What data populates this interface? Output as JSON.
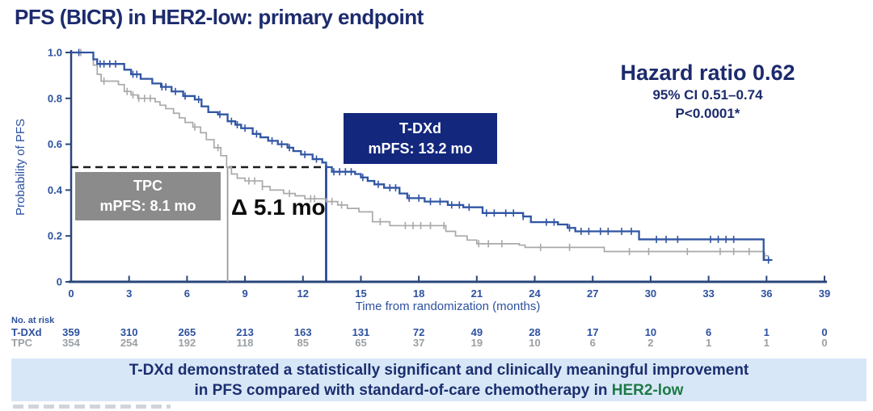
{
  "title": "PFS (BICR) in HER2-low: primary endpoint",
  "stats": {
    "hazard_ratio": "Hazard ratio 0.62",
    "ci": "95% CI 0.51–0.74",
    "p_value": "P<0.0001*"
  },
  "legend": {
    "tdxd": {
      "name": "T-DXd",
      "mpfs": "mPFS: 13.2 mo"
    },
    "tpc": {
      "name": "TPC",
      "mpfs": "mPFS: 8.1 mo"
    }
  },
  "delta_label": "Δ 5.1 mo",
  "banner": {
    "line1": "T-DXd demonstrated a statistically significant and clinically meaningful improvement",
    "line2_prefix": "in PFS compared with standard-of-care chemotherapy in ",
    "line2_highlight": "HER2-low"
  },
  "risk_table": {
    "caption": "No. at risk",
    "rows": [
      {
        "label": "T-DXd",
        "counts": [
          359,
          310,
          265,
          213,
          163,
          131,
          72,
          49,
          28,
          17,
          10,
          6,
          1,
          0
        ]
      },
      {
        "label": "TPC",
        "counts": [
          354,
          254,
          192,
          118,
          85,
          65,
          37,
          19,
          10,
          6,
          2,
          1,
          1,
          0
        ]
      }
    ]
  },
  "chart_data": {
    "type": "line",
    "subtype": "kaplan-meier-step",
    "title": "",
    "xlabel": "Time from randomization (months)",
    "ylabel": "Probability of PFS",
    "xlim": [
      0,
      39
    ],
    "ylim": [
      0,
      1.0
    ],
    "xticks": [
      0,
      3,
      6,
      9,
      12,
      15,
      18,
      21,
      24,
      27,
      30,
      33,
      36,
      39
    ],
    "yticks": [
      0,
      0.2,
      0.4,
      0.6,
      0.8,
      1.0
    ],
    "ytick_labels": [
      "0",
      "0.2",
      "0.4",
      "0.6",
      "0.8",
      "1.0"
    ],
    "grid": false,
    "median_reference_probability": 0.5,
    "series": [
      {
        "name": "TPC",
        "color": "#a9a9a9",
        "median_months": 8.1,
        "steps": [
          [
            0,
            1.0
          ],
          [
            1.15,
            0.945
          ],
          [
            1.35,
            0.905
          ],
          [
            1.55,
            0.875
          ],
          [
            2.45,
            0.86
          ],
          [
            2.75,
            0.83
          ],
          [
            3.1,
            0.815
          ],
          [
            3.45,
            0.8
          ],
          [
            4.35,
            0.785
          ],
          [
            4.6,
            0.77
          ],
          [
            4.9,
            0.755
          ],
          [
            5.3,
            0.735
          ],
          [
            5.6,
            0.715
          ],
          [
            5.9,
            0.695
          ],
          [
            6.3,
            0.675
          ],
          [
            6.7,
            0.65
          ],
          [
            7.0,
            0.62
          ],
          [
            7.4,
            0.585
          ],
          [
            7.75,
            0.55
          ],
          [
            8.05,
            0.5
          ],
          [
            8.3,
            0.47
          ],
          [
            8.6,
            0.452
          ],
          [
            9.0,
            0.44
          ],
          [
            9.9,
            0.415
          ],
          [
            10.3,
            0.4
          ],
          [
            11.0,
            0.385
          ],
          [
            11.6,
            0.375
          ],
          [
            12.1,
            0.362
          ],
          [
            13.2,
            0.35
          ],
          [
            13.8,
            0.335
          ],
          [
            14.3,
            0.32
          ],
          [
            14.9,
            0.305
          ],
          [
            15.6,
            0.262
          ],
          [
            16.5,
            0.245
          ],
          [
            19.4,
            0.22
          ],
          [
            19.9,
            0.2
          ],
          [
            20.5,
            0.182
          ],
          [
            21.0,
            0.166
          ],
          [
            23.2,
            0.16
          ],
          [
            23.5,
            0.15
          ],
          [
            27.6,
            0.132
          ],
          [
            35.85,
            0.114
          ],
          [
            36.1,
            0.114
          ]
        ],
        "censor_months": [
          0.5,
          1.7,
          2.9,
          3.2,
          3.5,
          3.8,
          4.1,
          6.4,
          7.6,
          9.2,
          9.5,
          9.9,
          11.3,
          12.4,
          12.6,
          13.5,
          14.0,
          16.0,
          17.3,
          17.7,
          18.1,
          18.6,
          19.3,
          21.1,
          21.6,
          22.3,
          24.3,
          25.8,
          28.9,
          29.9,
          31.9,
          33.6,
          34.3,
          35.1,
          35.9
        ]
      },
      {
        "name": "T-DXd",
        "color": "#3055a3",
        "median_months": 13.2,
        "steps": [
          [
            0,
            1.0
          ],
          [
            1.15,
            0.97
          ],
          [
            1.35,
            0.95
          ],
          [
            2.75,
            0.925
          ],
          [
            3.1,
            0.905
          ],
          [
            3.6,
            0.885
          ],
          [
            4.2,
            0.865
          ],
          [
            4.65,
            0.85
          ],
          [
            5.2,
            0.83
          ],
          [
            5.8,
            0.81
          ],
          [
            6.4,
            0.795
          ],
          [
            6.75,
            0.765
          ],
          [
            7.1,
            0.74
          ],
          [
            7.6,
            0.73
          ],
          [
            8.1,
            0.7
          ],
          [
            8.5,
            0.685
          ],
          [
            8.8,
            0.67
          ],
          [
            9.4,
            0.645
          ],
          [
            9.8,
            0.63
          ],
          [
            10.2,
            0.615
          ],
          [
            10.7,
            0.6
          ],
          [
            11.2,
            0.585
          ],
          [
            11.5,
            0.57
          ],
          [
            11.9,
            0.555
          ],
          [
            12.5,
            0.535
          ],
          [
            13.0,
            0.52
          ],
          [
            13.2,
            0.5
          ],
          [
            13.5,
            0.48
          ],
          [
            14.7,
            0.47
          ],
          [
            15.0,
            0.455
          ],
          [
            15.35,
            0.44
          ],
          [
            15.7,
            0.425
          ],
          [
            16.2,
            0.41
          ],
          [
            17.0,
            0.385
          ],
          [
            17.4,
            0.365
          ],
          [
            18.3,
            0.35
          ],
          [
            19.5,
            0.335
          ],
          [
            20.3,
            0.325
          ],
          [
            21.3,
            0.3
          ],
          [
            23.4,
            0.285
          ],
          [
            23.8,
            0.26
          ],
          [
            25.2,
            0.25
          ],
          [
            25.7,
            0.235
          ],
          [
            26.1,
            0.22
          ],
          [
            29.4,
            0.185
          ],
          [
            35.85,
            0.095
          ],
          [
            36.3,
            0.095
          ]
        ],
        "censor_months": [
          0.4,
          1.5,
          1.7,
          2.0,
          2.3,
          3.2,
          3.4,
          4.7,
          4.9,
          5.4,
          5.9,
          6.6,
          7.7,
          8.3,
          8.6,
          9.0,
          9.6,
          10.4,
          10.9,
          11.3,
          12.1,
          12.7,
          13.6,
          13.9,
          14.2,
          14.5,
          15.1,
          15.9,
          16.5,
          16.8,
          17.5,
          18.0,
          18.6,
          19.1,
          19.7,
          20.1,
          20.6,
          21.5,
          21.9,
          22.5,
          22.9,
          23.4,
          24.6,
          25.0,
          25.8,
          26.4,
          26.8,
          27.4,
          27.8,
          28.5,
          29.0,
          30.3,
          30.8,
          31.4,
          33.1,
          33.5,
          33.9,
          34.3,
          36.1
        ]
      }
    ]
  },
  "colors": {
    "navy_text": "#1c2b6d",
    "axis": "#2a4679",
    "blue_labels": "#2d519f",
    "tdxd_curve": "#3055a3",
    "tdxd_box": "#13277d",
    "tdxd_vline": "#1c3d94",
    "tpc_curve": "#a9a9a9",
    "tpc_box": "#8b8b8b",
    "tpc_vline": "#9a9a9a",
    "median_dash": "#1a1a1a",
    "banner_bg": "#d8e7f7",
    "banner_green": "#1e7a45"
  }
}
